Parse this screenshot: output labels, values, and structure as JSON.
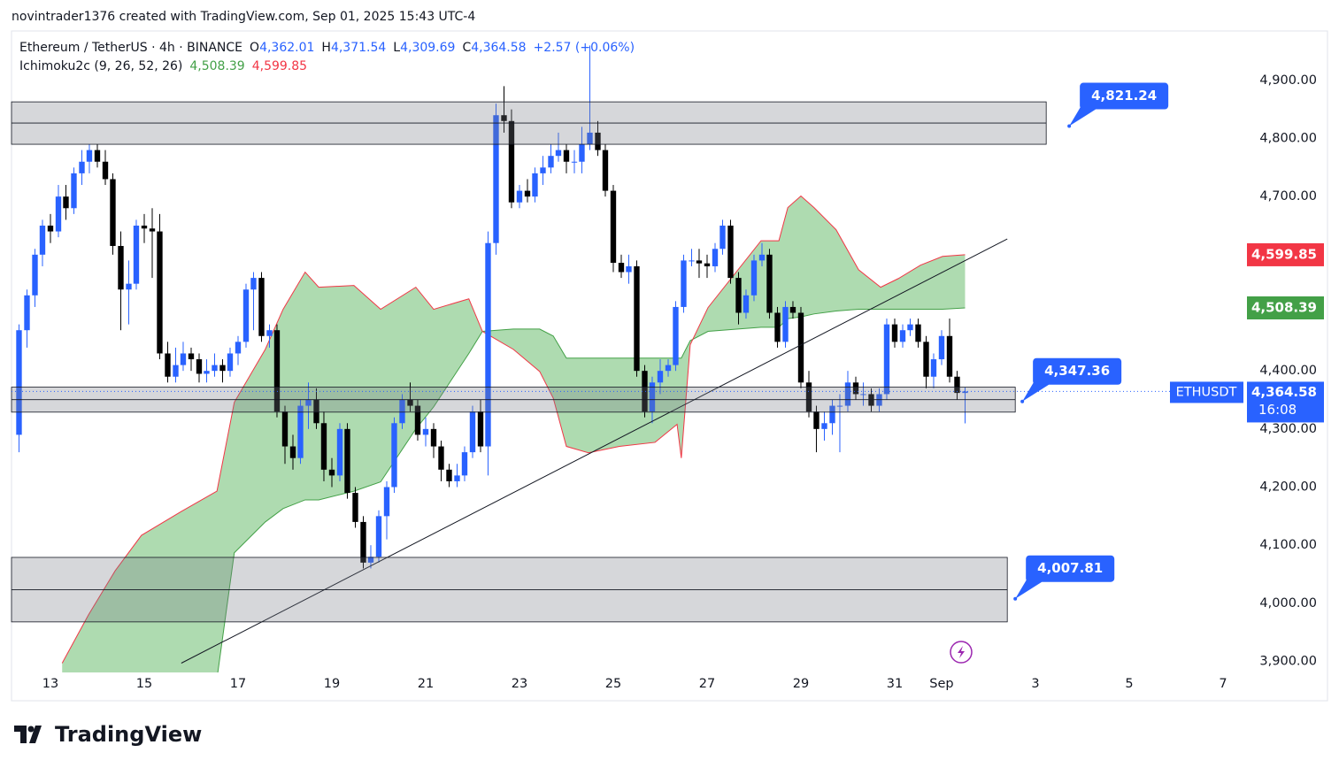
{
  "header": {
    "attribution": "novintrader1376 created with TradingView.com, Sep 01, 2025 15:43 UTC-4"
  },
  "chart_data": {
    "type": "candlestick",
    "title": "Ethereum / TetherUS · 4h · BINANCE",
    "ohlc_legend": [
      {
        "key": "O",
        "label": "4,362.01"
      },
      {
        "key": "H",
        "label": "4,371.54"
      },
      {
        "key": "L",
        "label": "4,309.69"
      },
      {
        "key": "C",
        "label": "4,364.58"
      }
    ],
    "change": "+2.57 (+0.06%)",
    "up_color": "#2962ff",
    "down_color": "#000000",
    "x": [
      12.33,
      12.5,
      12.67,
      12.83,
      13,
      13.17,
      13.33,
      13.5,
      13.67,
      13.83,
      14,
      14.17,
      14.33,
      14.5,
      14.67,
      14.83,
      15,
      15.17,
      15.33,
      15.5,
      15.67,
      15.83,
      16,
      16.17,
      16.33,
      16.5,
      16.67,
      16.83,
      17,
      17.17,
      17.33,
      17.5,
      17.67,
      17.83,
      18,
      18.17,
      18.33,
      18.5,
      18.67,
      18.83,
      19,
      19.17,
      19.33,
      19.5,
      19.67,
      19.83,
      20,
      20.17,
      20.33,
      20.5,
      20.67,
      20.83,
      21,
      21.17,
      21.33,
      21.5,
      21.67,
      21.83,
      22,
      22.17,
      22.33,
      22.5,
      22.67,
      22.83,
      23,
      23.17,
      23.33,
      23.5,
      23.67,
      23.83,
      24,
      24.17,
      24.33,
      24.5,
      24.67,
      24.83,
      25,
      25.17,
      25.33,
      25.5,
      25.67,
      25.83,
      26,
      26.17,
      26.33,
      26.5,
      26.67,
      26.83,
      27,
      27.17,
      27.33,
      27.5,
      27.67,
      27.83,
      28,
      28.17,
      28.33,
      28.5,
      28.67,
      28.83,
      29,
      29.17,
      29.33,
      29.5,
      29.67,
      29.83,
      30,
      30.17,
      30.33,
      30.5,
      30.67,
      30.83,
      31,
      31.17,
      31.33,
      31.5,
      31.67,
      31.83,
      32,
      32.17,
      32.33,
      32.5
    ],
    "open": [
      4290,
      4470,
      4530,
      4600,
      4650,
      4640,
      4700,
      4680,
      4740,
      4760,
      4780,
      4760,
      4730,
      4615,
      4540,
      4550,
      4650,
      4645,
      4640,
      4430,
      4390,
      4410,
      4430,
      4420,
      4395,
      4400,
      4410,
      4400,
      4430,
      4450,
      4540,
      4560,
      4460,
      4470,
      4330,
      4270,
      4250,
      4340,
      4350,
      4310,
      4230,
      4220,
      4300,
      4190,
      4140,
      4070,
      4080,
      4150,
      4200,
      4310,
      4350,
      4340,
      4290,
      4300,
      4270,
      4230,
      4210,
      4220,
      4260,
      4330,
      4270,
      4620,
      4840,
      4830,
      4690,
      4710,
      4700,
      4740,
      4750,
      4770,
      4780,
      4760,
      4760,
      4790,
      4810,
      4780,
      4710,
      4586,
      4570,
      4580,
      4400,
      4330,
      4380,
      4400,
      4410,
      4510,
      4590,
      4590,
      4585,
      4580,
      4610,
      4650,
      4560,
      4500,
      4530,
      4590,
      4600,
      4500,
      4450,
      4510,
      4500,
      4380,
      4330,
      4300,
      4310,
      4340,
      4340,
      4380,
      4360,
      4360,
      4340,
      4360,
      4480,
      4450,
      4470,
      4480,
      4450,
      4390,
      4420,
      4460,
      4390,
      4362.01
    ],
    "high": [
      4480,
      4540,
      4610,
      4660,
      4670,
      4720,
      4720,
      4750,
      4780,
      4790,
      4790,
      4780,
      4740,
      4640,
      4590,
      4660,
      4670,
      4680,
      4670,
      4450,
      4440,
      4450,
      4440,
      4430,
      4420,
      4430,
      4420,
      4440,
      4460,
      4550,
      4570,
      4570,
      4480,
      4480,
      4340,
      4290,
      4350,
      4380,
      4370,
      4330,
      4250,
      4310,
      4310,
      4200,
      4150,
      4100,
      4160,
      4210,
      4320,
      4360,
      4380,
      4350,
      4320,
      4310,
      4280,
      4240,
      4240,
      4270,
      4340,
      4350,
      4640,
      4860,
      4890,
      4850,
      4720,
      4730,
      4750,
      4770,
      4790,
      4810,
      4790,
      4780,
      4820,
      4960,
      4830,
      4790,
      4720,
      4600,
      4600,
      4590,
      4410,
      4390,
      4420,
      4420,
      4520,
      4600,
      4610,
      4610,
      4600,
      4620,
      4660,
      4660,
      4570,
      4540,
      4600,
      4620,
      4610,
      4510,
      4520,
      4520,
      4510,
      4400,
      4340,
      4330,
      4350,
      4360,
      4400,
      4390,
      4380,
      4370,
      4370,
      4490,
      4490,
      4480,
      4490,
      4490,
      4460,
      4430,
      4470,
      4490,
      4400,
      4371.54
    ],
    "low": [
      4260,
      4440,
      4510,
      4580,
      4620,
      4630,
      4660,
      4670,
      4720,
      4740,
      4750,
      4720,
      4600,
      4470,
      4480,
      4540,
      4620,
      4560,
      4420,
      4380,
      4380,
      4400,
      4400,
      4380,
      4380,
      4390,
      4380,
      4390,
      4410,
      4440,
      4470,
      4450,
      4440,
      4320,
      4240,
      4230,
      4240,
      4300,
      4300,
      4210,
      4200,
      4210,
      4180,
      4130,
      4060,
      4060,
      4070,
      4110,
      4190,
      4300,
      4330,
      4280,
      4270,
      4250,
      4210,
      4200,
      4200,
      4210,
      4250,
      4260,
      4220,
      4600,
      4810,
      4680,
      4680,
      4690,
      4690,
      4720,
      4740,
      4760,
      4740,
      4740,
      4740,
      4780,
      4770,
      4700,
      4570,
      4560,
      4550,
      4390,
      4320,
      4310,
      4360,
      4390,
      4400,
      4500,
      4580,
      4560,
      4560,
      4570,
      4600,
      4550,
      4480,
      4490,
      4520,
      4580,
      4490,
      4440,
      4440,
      4490,
      4370,
      4320,
      4260,
      4280,
      4290,
      4260,
      4330,
      4350,
      4340,
      4330,
      4330,
      4350,
      4440,
      4440,
      4460,
      4440,
      4370,
      4370,
      4410,
      4380,
      4350,
      4309.69
    ],
    "close": [
      4470,
      4530,
      4600,
      4650,
      4640,
      4700,
      4680,
      4740,
      4760,
      4780,
      4760,
      4730,
      4615,
      4540,
      4550,
      4650,
      4645,
      4640,
      4430,
      4390,
      4410,
      4430,
      4420,
      4395,
      4400,
      4410,
      4400,
      4430,
      4450,
      4540,
      4560,
      4460,
      4470,
      4330,
      4270,
      4250,
      4340,
      4350,
      4310,
      4230,
      4220,
      4300,
      4190,
      4140,
      4070,
      4080,
      4150,
      4200,
      4310,
      4350,
      4340,
      4290,
      4300,
      4270,
      4230,
      4210,
      4220,
      4260,
      4330,
      4270,
      4620,
      4840,
      4830,
      4690,
      4710,
      4700,
      4740,
      4750,
      4770,
      4780,
      4760,
      4760,
      4790,
      4810,
      4780,
      4710,
      4586,
      4570,
      4580,
      4400,
      4330,
      4380,
      4400,
      4410,
      4510,
      4590,
      4590,
      4585,
      4580,
      4610,
      4650,
      4560,
      4500,
      4530,
      4590,
      4600,
      4500,
      4450,
      4510,
      4500,
      4380,
      4330,
      4300,
      4310,
      4340,
      4340,
      4380,
      4360,
      4360,
      4340,
      4360,
      4480,
      4450,
      4470,
      4480,
      4450,
      4390,
      4420,
      4460,
      4390,
      4362,
      4364.58
    ],
    "xlim": [
      12.17,
      38.34
    ],
    "xticks": [
      13,
      15,
      17,
      19,
      21,
      23,
      25,
      27,
      29,
      31,
      {
        "value": 32,
        "label": "Sep"
      },
      {
        "value": 34,
        "label": "3"
      },
      {
        "value": 36,
        "label": "5"
      },
      {
        "value": 38,
        "label": "7"
      }
    ],
    "ylim": [
      3881,
      4985
    ],
    "yticks": [
      {
        "value": 3900,
        "label": "3,900.00"
      },
      {
        "value": 4000,
        "label": "4,000.00"
      },
      {
        "value": 4100,
        "label": "4,100.00"
      },
      {
        "value": 4200,
        "label": "4,200.00"
      },
      {
        "value": 4300,
        "label": "4,300.00"
      },
      {
        "value": 4400,
        "label": "4,400.00"
      },
      {
        "value": 4500,
        "label": "4,500.00"
      },
      {
        "value": 4600,
        "label": "4,600.00"
      },
      {
        "value": 4700,
        "label": "4,700.00"
      },
      {
        "value": 4800,
        "label": "4,800.00"
      },
      {
        "value": 4900,
        "label": "4,900.00"
      }
    ],
    "grid": false,
    "indicator": {
      "name": "Ichimoku2c (9, 26, 52, 26)",
      "cloud_color": "#4caf50",
      "x": [
        13.25,
        13.81,
        14.38,
        14.94,
        15.79,
        16.55,
        16.92,
        17.58,
        17.96,
        18.43,
        18.72,
        19.47,
        20.04,
        20.79,
        21.17,
        21.92,
        22.21,
        22.87,
        23.43,
        23.72,
        24.0,
        24.47,
        25.13,
        25.89,
        26.36,
        26.45,
        26.64,
        27.02,
        28.15,
        28.53,
        28.72,
        29.0,
        29.28,
        29.75,
        30.23,
        30.7,
        31.08,
        31.55,
        32.02,
        32.5
      ],
      "span_a": {
        "color": "#43a047",
        "value_label": "4,508.39",
        "values": [
          3870,
          3870,
          3870,
          3870,
          3870,
          3870,
          4087,
          4140,
          4163,
          4178,
          4178,
          4193,
          4209,
          4300,
          4338,
          4430,
          4468,
          4472,
          4472,
          4460,
          4422,
          4422,
          4422,
          4422,
          4422,
          4422,
          4452,
          4468,
          4475,
          4475,
          4490,
          4493,
          4498,
          4503,
          4506,
          4506,
          4506,
          4506,
          4506,
          4508.39
        ]
      },
      "span_b": {
        "color": "#f23645",
        "value_label": "4,599.85",
        "values": [
          3897,
          3980,
          4056,
          4117,
          4158,
          4193,
          4346,
          4437,
          4506,
          4570,
          4544,
          4547,
          4506,
          4544,
          4506,
          4524,
          4468,
          4437,
          4399,
          4353,
          4270,
          4259,
          4270,
          4277,
          4308,
          4250,
          4445,
          4509,
          4624,
          4624,
          4681,
          4701,
          4681,
          4643,
          4574,
          4544,
          4559,
          4582,
          4597,
          4599.85
        ]
      }
    },
    "zones": [
      {
        "top": 4863,
        "bottom": 4790,
        "x_end": 34.23
      },
      {
        "top": 4372,
        "bottom": 4329,
        "x_end": 33.57
      },
      {
        "top": 4079,
        "bottom": 3968,
        "x_end": 33.4
      }
    ],
    "trendline": {
      "x": [
        15.79,
        33.4
      ],
      "values": [
        3897,
        4627
      ]
    },
    "callouts": [
      {
        "label": "4,821.24",
        "value": 4821.24,
        "x": 34.72
      },
      {
        "label": "4,347.36",
        "value": 4347.36,
        "x": 33.72
      },
      {
        "label": "4,007.81",
        "value": 4007.81,
        "x": 33.57
      }
    ],
    "last_price": {
      "symbol": "ETHUSDT",
      "value": 4364.58,
      "label": "4,364.58",
      "countdown": "16:08"
    }
  },
  "footer": {
    "logo": "TradingView"
  }
}
